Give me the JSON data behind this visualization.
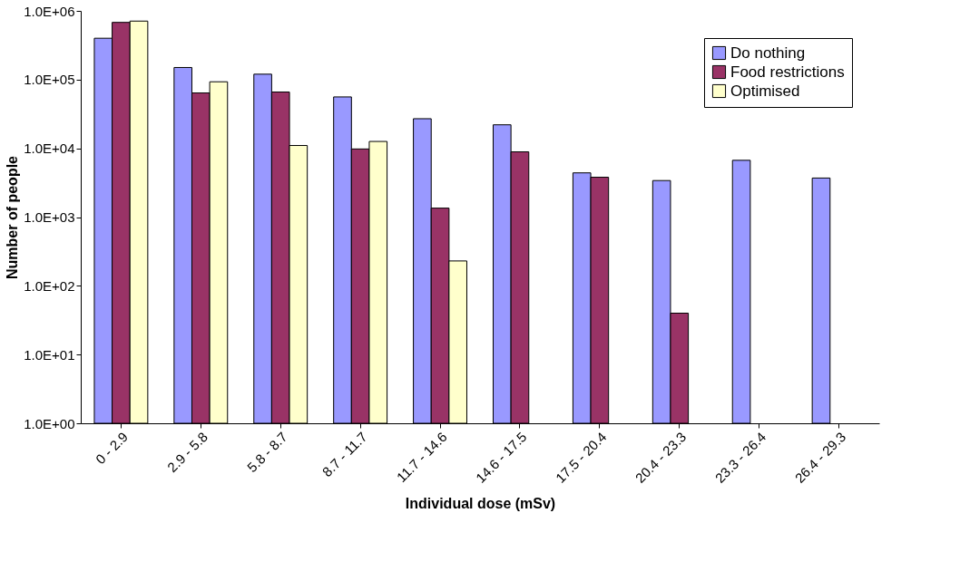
{
  "chart_data": {
    "type": "bar",
    "xlabel": "Individual dose (mSv)",
    "ylabel": "Number of people",
    "categories": [
      "0 - 2.9",
      "2.9 - 5.8",
      "5.8 - 8.7",
      "8.7 - 11.7",
      "11.7 - 14.6",
      "14.6 - 17.5",
      "17.5 - 20.4",
      "20.4 - 23.3",
      "23.3 - 26.4",
      "26.4 - 29.3"
    ],
    "series": [
      {
        "name": "Do nothing",
        "color": "#9999ff",
        "values": [
          400000,
          150000,
          120000,
          56000,
          27000,
          22000,
          4400,
          3400,
          6700,
          3700
        ]
      },
      {
        "name": "Food restrictions",
        "color": "#993366",
        "values": [
          680000,
          64000,
          66000,
          9800,
          1350,
          8900,
          3800,
          40,
          null,
          null
        ]
      },
      {
        "name": "Optimised",
        "color": "#ffffcc",
        "values": [
          710000,
          93000,
          11000,
          12600,
          230,
          null,
          null,
          null,
          null,
          null
        ]
      }
    ],
    "log": "y",
    "ylim": [
      1,
      1000000
    ],
    "yticks": [
      {
        "value": 1,
        "label": "1.0E+00"
      },
      {
        "value": 10,
        "label": "1.0E+01"
      },
      {
        "value": 100,
        "label": "1.0E+02"
      },
      {
        "value": 1000,
        "label": "1.0E+03"
      },
      {
        "value": 10000,
        "label": "1.0E+04"
      },
      {
        "value": 100000,
        "label": "1.0E+05"
      },
      {
        "value": 1000000,
        "label": "1.0E+06"
      }
    ],
    "grid": false,
    "legend": "top right"
  }
}
